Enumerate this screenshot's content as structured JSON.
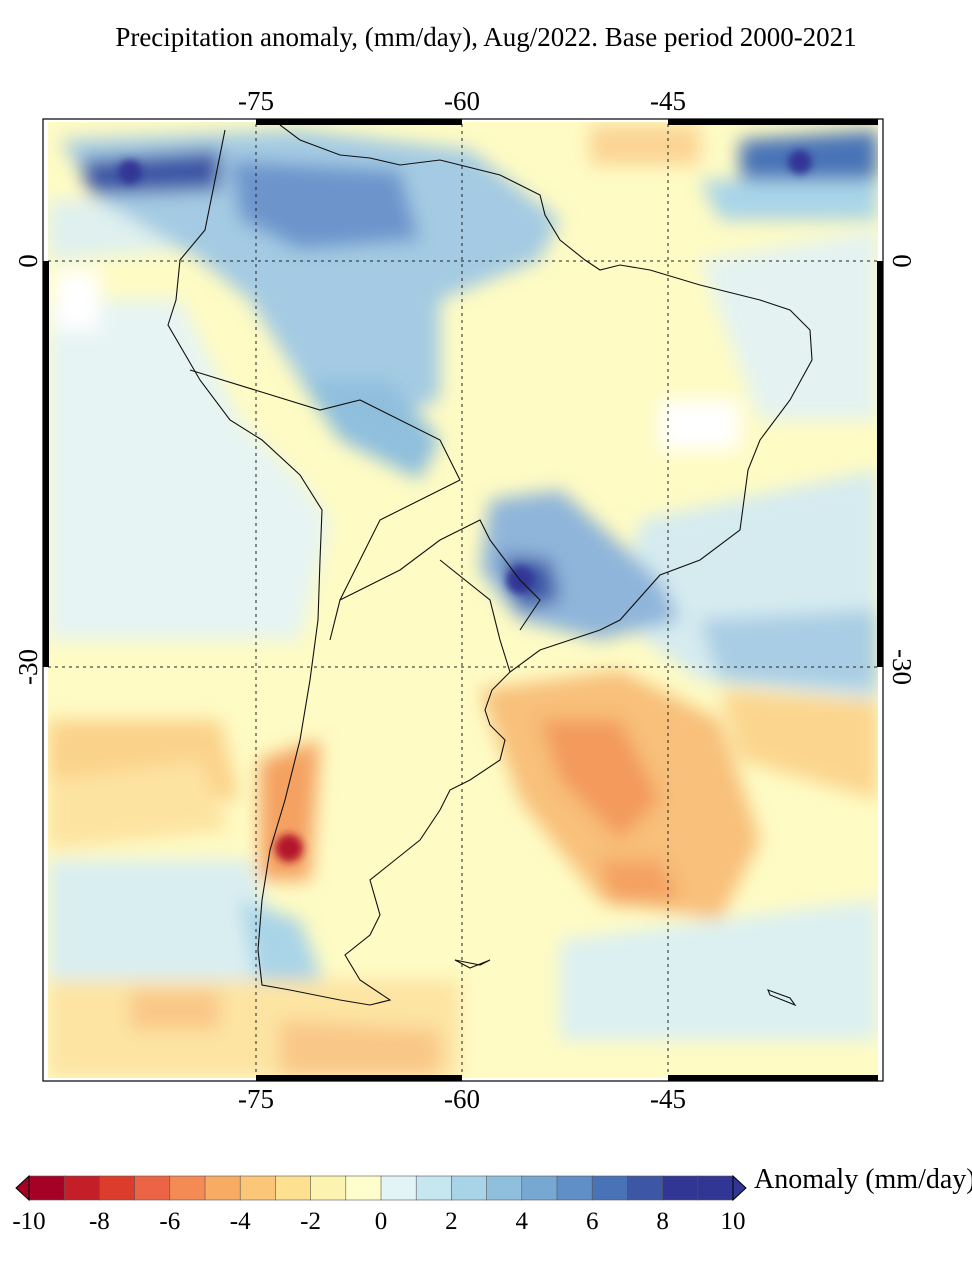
{
  "title": "Precipitation anomaly, (mm/day), Aug/2022. Base period 2000-2021",
  "map": {
    "lon_ticks": [
      "-75",
      "-60",
      "-45"
    ],
    "lat_ticks": [
      "0",
      "-30"
    ],
    "lon_range": [
      -89.5,
      -29.5
    ],
    "lat_range": [
      10,
      -60
    ]
  },
  "colorbar": {
    "title": "Anomaly (mm/day)",
    "labels": [
      "-10",
      "-8",
      "-6",
      "-4",
      "-2",
      "0",
      "2",
      "4",
      "6",
      "8",
      "10"
    ],
    "colors": [
      "#a50026",
      "#c41f29",
      "#dc3c2c",
      "#ec6446",
      "#f48b54",
      "#f8ab63",
      "#fcc678",
      "#fde191",
      "#fdf3b0",
      "#fefecc",
      "#e3f4f7",
      "#c6e6f0",
      "#a9d4e8",
      "#8fbfdd",
      "#76a8d2",
      "#5f8fc6",
      "#4a73b7",
      "#3d57a6",
      "#313695"
    ]
  }
}
